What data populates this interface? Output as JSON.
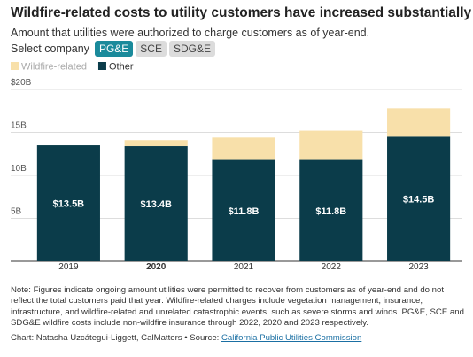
{
  "chart_data": {
    "type": "stacked_bar",
    "title": "Wildfire-related costs to utility customers have increased substantially",
    "subtitle": "Amount that utilities were authorized to charge customers as of year-end.",
    "controls": {
      "label": "Select company",
      "options": [
        "PG&E",
        "SCE",
        "SDG&E"
      ],
      "selected": 0
    },
    "categories": [
      "2019",
      "2020",
      "2021",
      "2022",
      "2023"
    ],
    "highlight_category": 1,
    "series": [
      {
        "name": "Wildfire-related",
        "color": "#f8e0aa",
        "values": [
          0,
          0.7,
          2.6,
          3.4,
          3.3
        ]
      },
      {
        "name": "Other",
        "color": "#0b3c4a",
        "values": [
          13.5,
          13.4,
          11.8,
          11.8,
          14.5
        ],
        "value_labels": [
          "$13.5B",
          "$13.4B",
          "$11.8B",
          "$11.8B",
          "$14.5B"
        ]
      }
    ],
    "ylim": [
      0,
      20
    ],
    "yticks": [
      {
        "value": 5,
        "label": "5B"
      },
      {
        "value": 10,
        "label": "10B"
      },
      {
        "value": 15,
        "label": "15B"
      },
      {
        "value": 20,
        "label": "$20B"
      }
    ],
    "grid": true,
    "note": "Note: Figures indicate ongoing amount utilities were permitted to recover from customers as of year-end and do not reflect the total customers paid that year. Wildfire-related charges include vegetation management, insurance, infrastructure, and wildfire-related and unrelated catastrophic events, such as severe storms and winds. PG&E, SCE and SDG&E wildfire costs include non-wildfire insurance through 2022, 2020 and 2023 respectively.",
    "credit": "Chart: Natasha Uzcátegui-Liggett, CalMatters • Source: ",
    "source_link": "California Public Utilities Commission"
  }
}
